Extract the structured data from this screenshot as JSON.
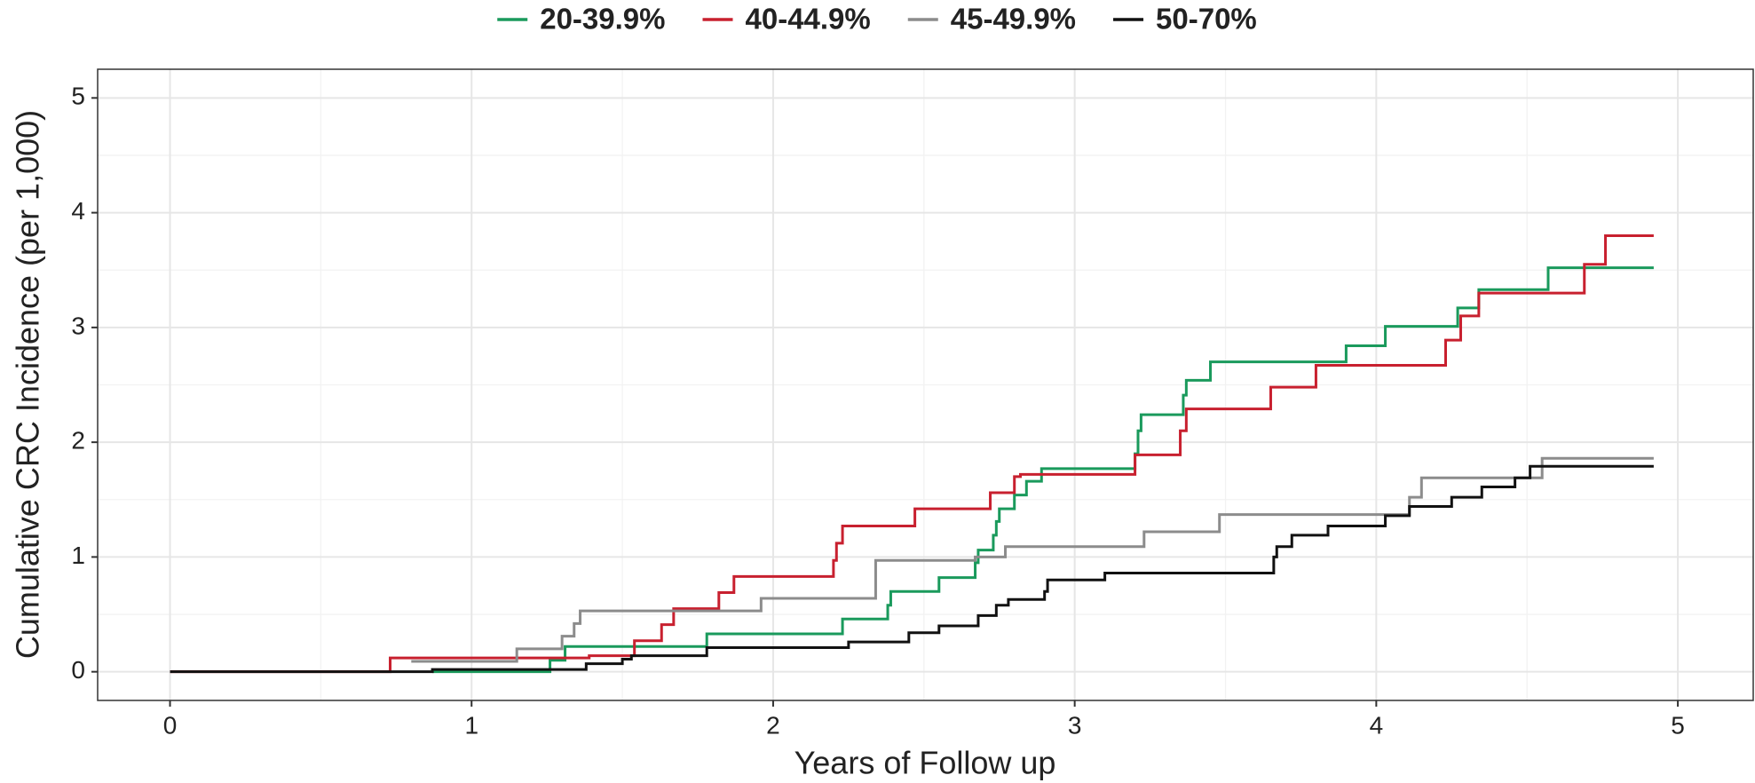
{
  "chart_data": {
    "type": "step",
    "xlabel": "Years of Follow up",
    "ylabel": "Cumulative CRC Incidence (per 1,000)",
    "xlim": [
      -0.24,
      5.25
    ],
    "xticks": [
      0,
      1,
      2,
      3,
      4,
      5
    ],
    "ylim": [
      -0.25,
      5.25
    ],
    "yticks": [
      0,
      1,
      2,
      3,
      4,
      5
    ],
    "grid": true,
    "minor_grid": true,
    "legend": "top",
    "series": [
      {
        "name": "20-39.9%",
        "color": "#1a9a5c",
        "x": [
          0.87,
          1.26,
          1.31,
          1.78,
          2.23,
          2.38,
          2.39,
          2.55,
          2.67,
          2.68,
          2.73,
          2.74,
          2.75,
          2.8,
          2.84,
          2.89,
          3.2,
          3.21,
          3.22,
          3.36,
          3.37,
          3.45,
          3.9,
          4.03,
          4.27,
          4.34,
          4.57,
          4.92
        ],
        "values": [
          0,
          0.1,
          0.22,
          0.33,
          0.46,
          0.58,
          0.7,
          0.82,
          0.95,
          1.06,
          1.19,
          1.31,
          1.42,
          1.54,
          1.66,
          1.77,
          1.9,
          2.1,
          2.24,
          2.41,
          2.54,
          2.7,
          2.84,
          3.01,
          3.17,
          3.33,
          3.52,
          3.52
        ]
      },
      {
        "name": "40-44.9%",
        "color": "#c8202f",
        "x": [
          0,
          0.73,
          1.39,
          1.54,
          1.63,
          1.67,
          1.82,
          1.87,
          2.2,
          2.21,
          2.23,
          2.47,
          2.72,
          2.8,
          2.82,
          3.2,
          3.35,
          3.37,
          3.65,
          3.8,
          4.23,
          4.28,
          4.34,
          4.69,
          4.76,
          4.92
        ],
        "values": [
          0,
          0.12,
          0.14,
          0.27,
          0.41,
          0.55,
          0.69,
          0.83,
          0.97,
          1.12,
          1.27,
          1.42,
          1.56,
          1.7,
          1.72,
          1.89,
          2.1,
          2.29,
          2.48,
          2.67,
          2.89,
          3.1,
          3.3,
          3.55,
          3.8,
          3.8
        ]
      },
      {
        "name": "45-49.9%",
        "color": "#8c8c8c",
        "x": [
          0.8,
          1.15,
          1.3,
          1.34,
          1.36,
          1.96,
          2.34,
          2.67,
          2.77,
          3.23,
          3.48,
          4.11,
          4.15,
          4.55,
          4.92
        ],
        "values": [
          0.09,
          0.2,
          0.31,
          0.42,
          0.53,
          0.64,
          0.97,
          1.0,
          1.09,
          1.22,
          1.37,
          1.52,
          1.69,
          1.86,
          1.86
        ]
      },
      {
        "name": "50-70%",
        "color": "#111111",
        "x": [
          0,
          0.87,
          1.38,
          1.5,
          1.53,
          1.78,
          2.25,
          2.45,
          2.55,
          2.68,
          2.74,
          2.78,
          2.9,
          2.91,
          3.1,
          3.66,
          3.67,
          3.72,
          3.84,
          4.03,
          4.11,
          4.25,
          4.35,
          4.46,
          4.51,
          4.92
        ],
        "values": [
          0,
          0.02,
          0.07,
          0.11,
          0.14,
          0.21,
          0.26,
          0.34,
          0.4,
          0.49,
          0.58,
          0.63,
          0.7,
          0.8,
          0.86,
          1.0,
          1.09,
          1.19,
          1.27,
          1.36,
          1.44,
          1.52,
          1.61,
          1.69,
          1.79,
          1.79
        ]
      }
    ]
  }
}
